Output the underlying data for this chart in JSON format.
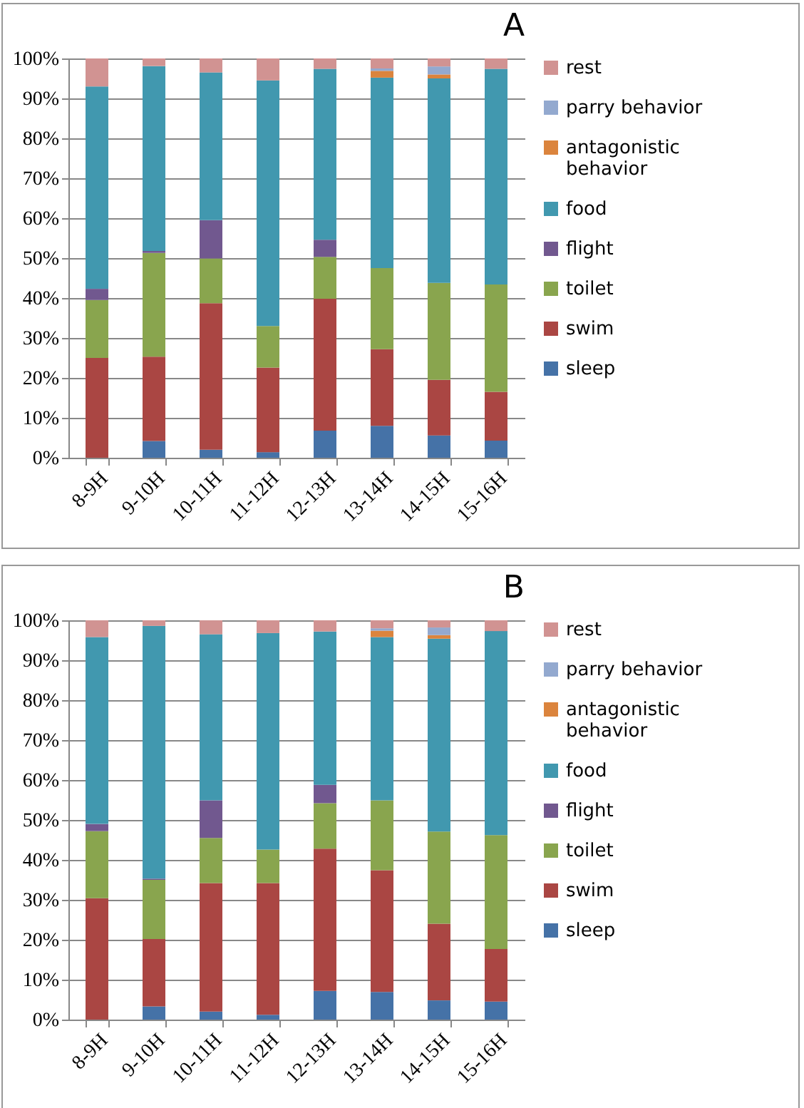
{
  "chart_data": [
    {
      "type": "bar",
      "title": "A",
      "stacked": true,
      "grid": "y",
      "legend": "right",
      "categories": [
        "8-9H",
        "9-10H",
        "10-11H",
        "11-12H",
        "12-13H",
        "13-14H",
        "14-15H",
        "15-16H"
      ],
      "ylim": [
        0,
        100
      ],
      "yticks": [
        {
          "value": 0,
          "label": "0%"
        },
        {
          "value": 10,
          "label": "10%"
        },
        {
          "value": 20,
          "label": "20%"
        },
        {
          "value": 30,
          "label": "30%"
        },
        {
          "value": 40,
          "label": "40%"
        },
        {
          "value": 50,
          "label": "50%"
        },
        {
          "value": 60,
          "label": "60%"
        },
        {
          "value": 70,
          "label": "70%"
        },
        {
          "value": 80,
          "label": "80%"
        },
        {
          "value": 90,
          "label": "90%"
        },
        {
          "value": 100,
          "label": "100%"
        }
      ],
      "series": [
        {
          "name": "sleep",
          "color": "#4572a7",
          "values": [
            0,
            4.2,
            2,
            1.4,
            6.8,
            8,
            5.6,
            4.3
          ]
        },
        {
          "name": "swim",
          "color": "#aa4643",
          "values": [
            25,
            21.1,
            36.7,
            21.2,
            33,
            19.2,
            13.9,
            12.2
          ]
        },
        {
          "name": "toilet",
          "color": "#89a54e",
          "values": [
            14.5,
            26,
            11.2,
            10.4,
            10.5,
            20.3,
            24.3,
            26.9
          ]
        },
        {
          "name": "flight",
          "color": "#71588f",
          "values": [
            2.8,
            0.5,
            9.6,
            0,
            4.3,
            0,
            0,
            0
          ]
        },
        {
          "name": "food",
          "color": "#4198af",
          "values": [
            50.7,
            46.3,
            37,
            61.5,
            42.8,
            47.7,
            51.2,
            54
          ]
        },
        {
          "name": "antagonistic behavior",
          "color": "#db843d",
          "values": [
            0,
            0,
            0,
            0,
            0,
            1.7,
            1,
            0
          ]
        },
        {
          "name": "parry behavior",
          "color": "#93a9cf",
          "values": [
            0,
            0,
            0,
            0,
            0,
            0.6,
            2,
            0
          ]
        },
        {
          "name": "rest",
          "color": "#d19392",
          "values": [
            7,
            1.9,
            3.5,
            5.5,
            2.6,
            2.5,
            2,
            2.6
          ]
        }
      ]
    },
    {
      "type": "bar",
      "title": "B",
      "stacked": true,
      "grid": "y",
      "legend": "right",
      "categories": [
        "8-9H",
        "9-10H",
        "10-11H",
        "11-12H",
        "12-13H",
        "13-14H",
        "14-15H",
        "15-16H"
      ],
      "ylim": [
        0,
        100
      ],
      "yticks": [
        {
          "value": 0,
          "label": "0%"
        },
        {
          "value": 10,
          "label": "10%"
        },
        {
          "value": 20,
          "label": "20%"
        },
        {
          "value": 30,
          "label": "30%"
        },
        {
          "value": 40,
          "label": "40%"
        },
        {
          "value": 50,
          "label": "50%"
        },
        {
          "value": 60,
          "label": "60%"
        },
        {
          "value": 70,
          "label": "70%"
        },
        {
          "value": 80,
          "label": "80%"
        },
        {
          "value": 90,
          "label": "90%"
        },
        {
          "value": 100,
          "label": "100%"
        }
      ],
      "series": [
        {
          "name": "sleep",
          "color": "#4572a7",
          "values": [
            0,
            3.3,
            2,
            1.2,
            7.2,
            6.9,
            4.8,
            4.5
          ]
        },
        {
          "name": "swim",
          "color": "#aa4643",
          "values": [
            30.4,
            16.9,
            32.2,
            33,
            35.6,
            30.5,
            19.2,
            13.2
          ]
        },
        {
          "name": "toilet",
          "color": "#89a54e",
          "values": [
            16.8,
            14.8,
            11.3,
            8.4,
            11.4,
            17.5,
            23.1,
            28.5
          ]
        },
        {
          "name": "flight",
          "color": "#71588f",
          "values": [
            1.8,
            0.3,
            9.4,
            0,
            4.6,
            0,
            0,
            0
          ]
        },
        {
          "name": "food",
          "color": "#4198af",
          "values": [
            46.8,
            63.3,
            41.6,
            54.2,
            38.4,
            40.9,
            48.3,
            51.1
          ]
        },
        {
          "name": "antagonistic behavior",
          "color": "#db843d",
          "values": [
            0,
            0,
            0,
            0,
            0,
            1.6,
            0.9,
            0
          ]
        },
        {
          "name": "parry behavior",
          "color": "#93a9cf",
          "values": [
            0,
            0,
            0,
            0,
            0,
            0.6,
            1.9,
            0
          ]
        },
        {
          "name": "rest",
          "color": "#d19392",
          "values": [
            4.2,
            1.4,
            3.5,
            3.2,
            2.8,
            2,
            1.8,
            2.7
          ]
        }
      ]
    }
  ]
}
